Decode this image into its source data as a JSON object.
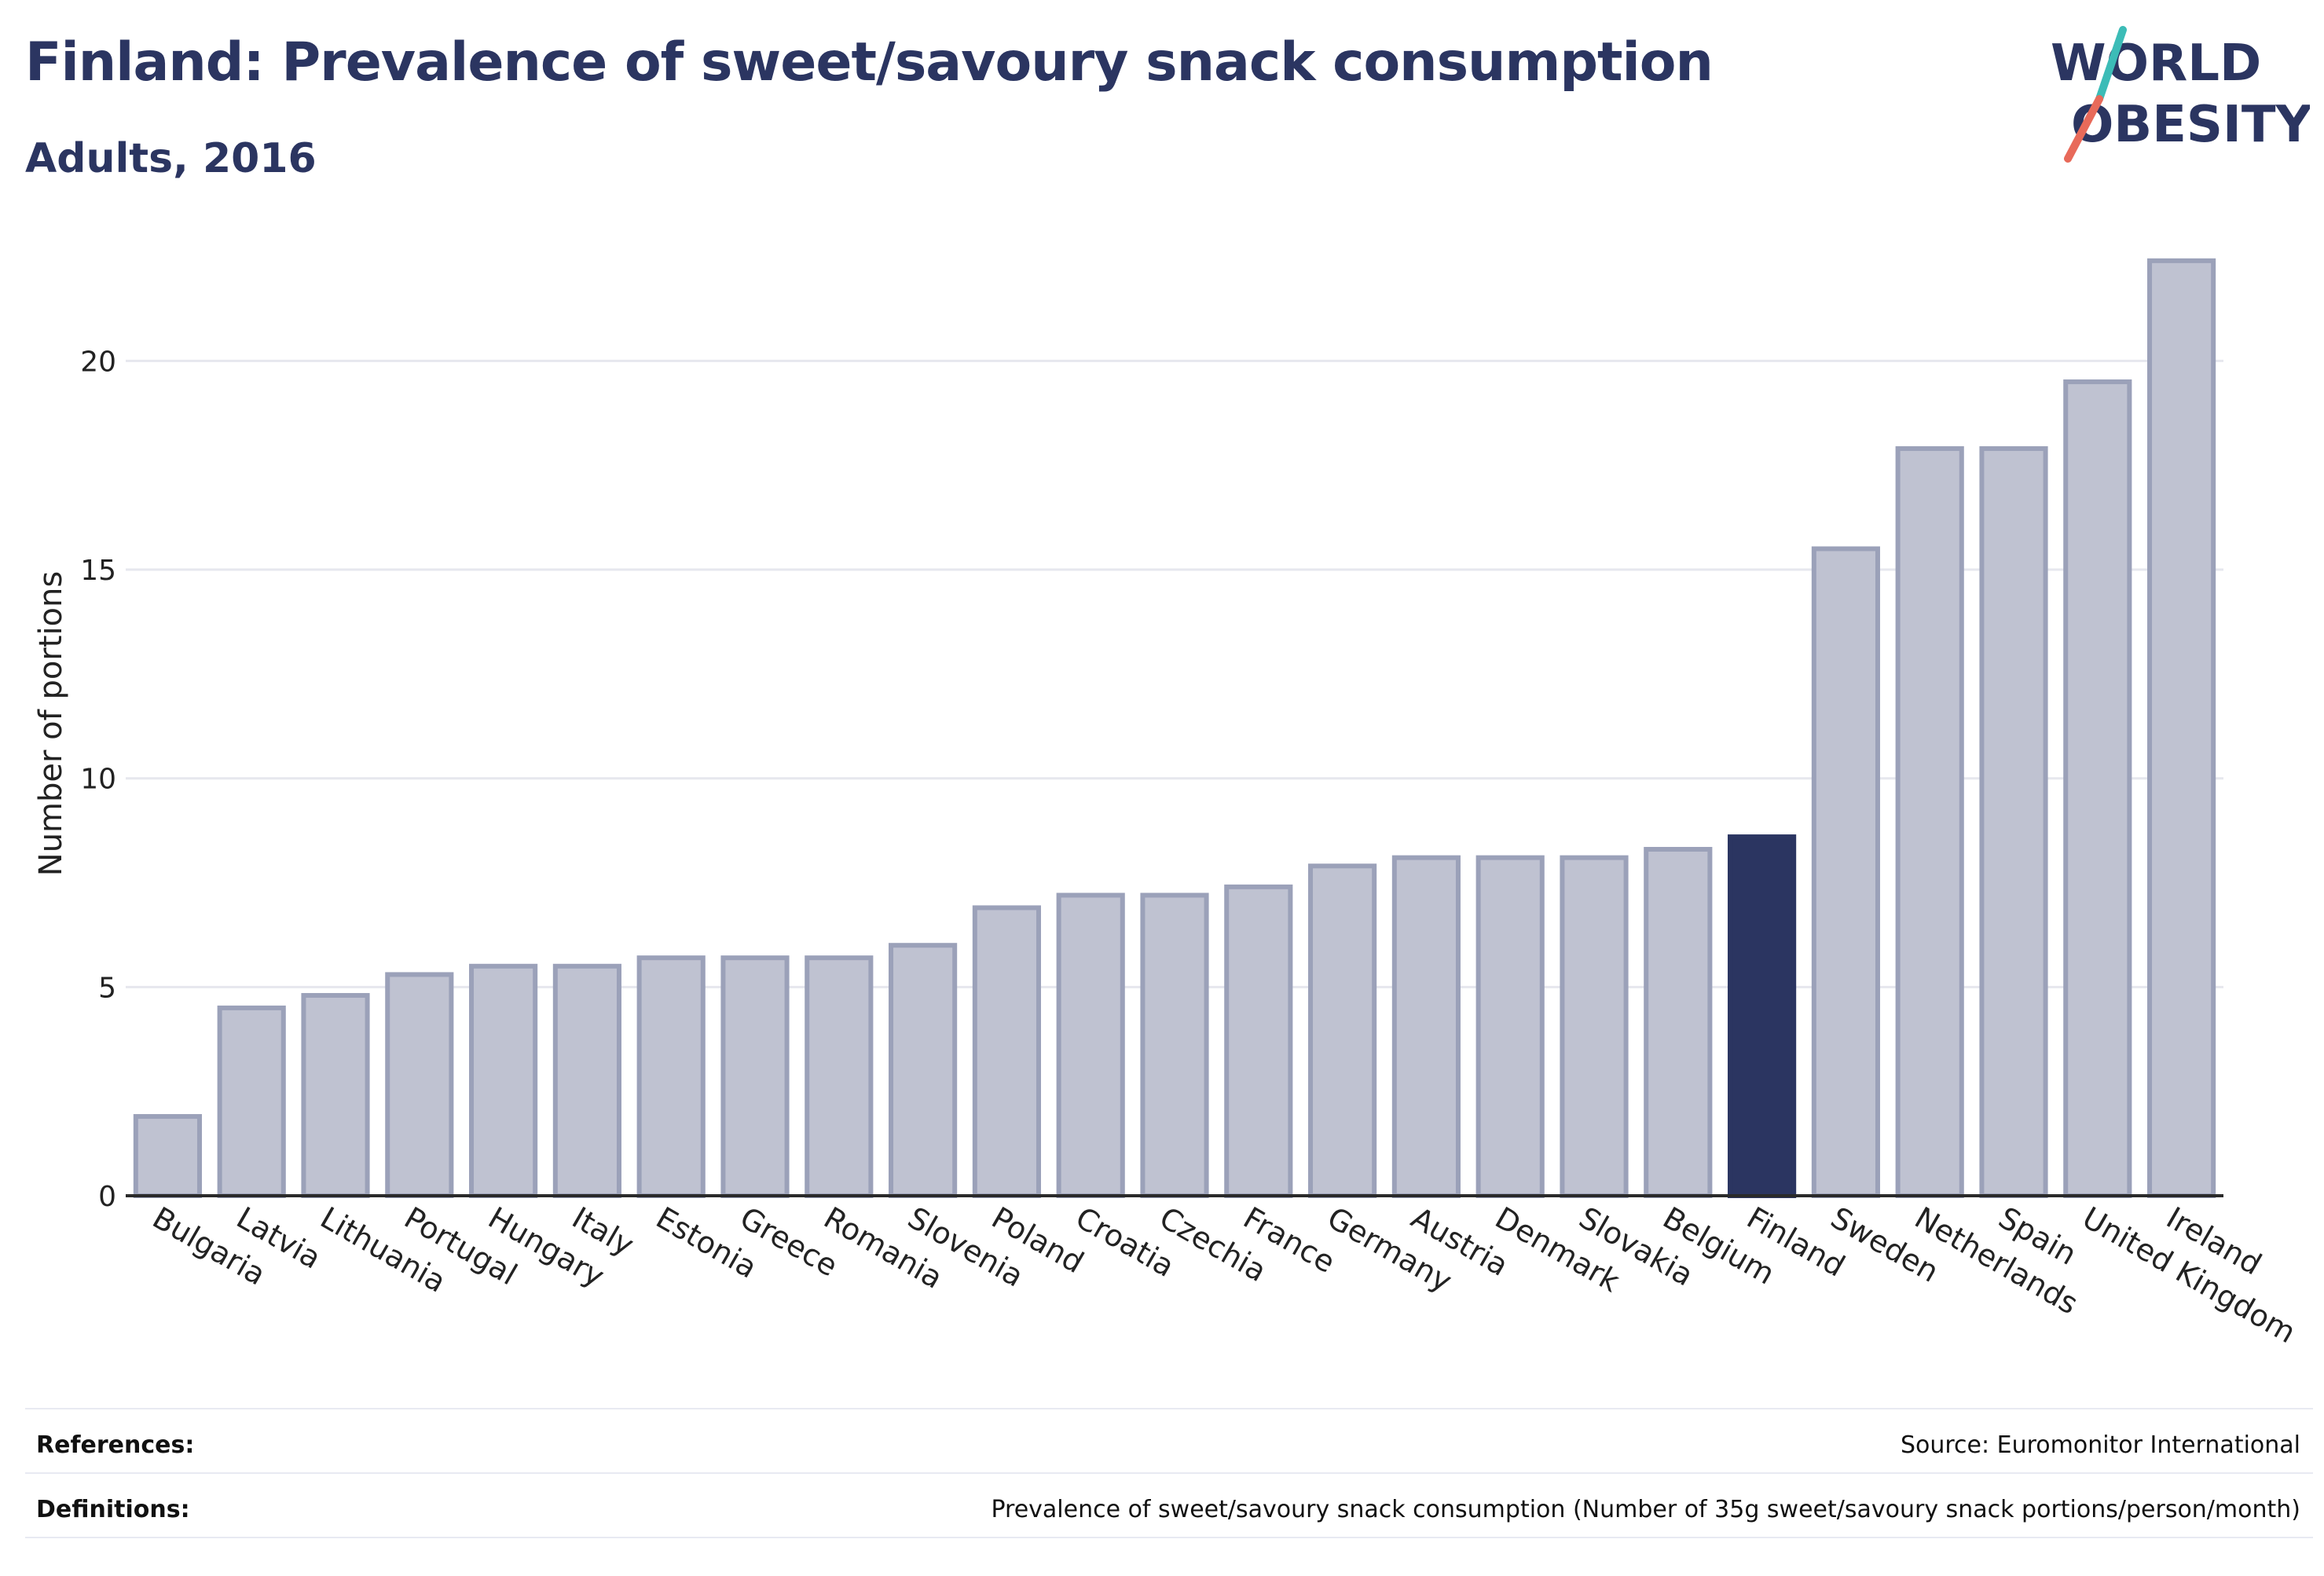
{
  "header": {
    "title": "Finland: Prevalence of sweet/savoury snack consumption",
    "subtitle": "Adults, 2016"
  },
  "logo": {
    "line1": "WORLD",
    "line2": "OBESITY",
    "icon": "world-obesity-slash-logo"
  },
  "colors": {
    "bar": "#bfc2d1",
    "bar_stroke": "#9ba1b9",
    "highlight": "#2b3561",
    "grid": "#e6e7ee",
    "axis": "#2a2a2a",
    "logo_teal": "#3cbcb7",
    "logo_coral": "#e86a5a"
  },
  "chart_data": {
    "type": "bar",
    "categories": [
      "Bulgaria",
      "Latvia",
      "Lithuania",
      "Portugal",
      "Hungary",
      "Italy",
      "Estonia",
      "Greece",
      "Romania",
      "Slovenia",
      "Poland",
      "Croatia",
      "Czechia",
      "France",
      "Germany",
      "Austria",
      "Denmark",
      "Slovakia",
      "Belgium",
      "Finland",
      "Sweden",
      "Netherlands",
      "Spain",
      "United Kingdom",
      "Ireland"
    ],
    "values": [
      1.9,
      4.5,
      4.8,
      5.3,
      5.5,
      5.5,
      5.7,
      5.7,
      5.7,
      6.0,
      6.9,
      7.2,
      7.2,
      7.4,
      7.9,
      8.1,
      8.1,
      8.1,
      8.3,
      8.6,
      15.5,
      17.9,
      17.9,
      19.5,
      22.4
    ],
    "highlight": "Finland",
    "ylabel": "Number of portions",
    "ylim": [
      0,
      23
    ],
    "yticks": [
      0,
      5,
      10,
      15,
      20
    ],
    "grid": true
  },
  "footer": {
    "references_label": "References:",
    "references_value": "Source: Euromonitor International",
    "definitions_label": "Definitions:",
    "definitions_value": "Prevalence of sweet/savoury snack consumption (Number of 35g sweet/savoury snack portions/person/month)"
  }
}
